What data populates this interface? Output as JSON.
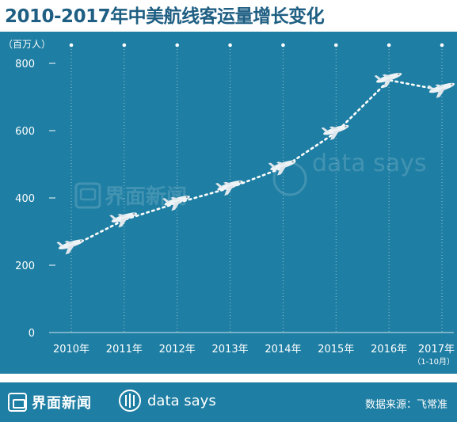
{
  "title": "2010-2017年中美航线客运量增长变化",
  "chart_data": {
    "type": "line",
    "unit": "（百万人）",
    "categories": [
      "2010年",
      "2011年",
      "2012年",
      "2013年",
      "2014年",
      "2015年",
      "2016年",
      "2017年"
    ],
    "category_notes": [
      "",
      "",
      "",
      "",
      "",
      "",
      "",
      "（1-10月）"
    ],
    "values": [
      255,
      335,
      385,
      430,
      490,
      595,
      750,
      720
    ],
    "yticks": [
      0,
      200,
      400,
      600,
      800
    ],
    "ylim": [
      0,
      800
    ],
    "style": "dotted",
    "point_icon": "airplane-icon",
    "colors": {
      "background": "#1e7ea3",
      "line": "#ffffff",
      "axis_text": "#ffffff",
      "title": "#1f5f83"
    }
  },
  "watermark": {
    "brand_cn": "界面新闻",
    "brand_en": "data says"
  },
  "footer": {
    "brand_cn": "界面新闻",
    "brand_en": "data says",
    "source": "数据来源：飞常准"
  }
}
